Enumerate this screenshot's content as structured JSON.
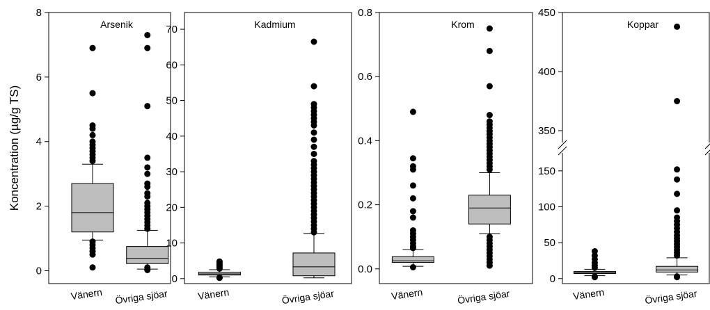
{
  "chart_data": [
    {
      "type": "box",
      "title": "Arsenik",
      "ylabel": "Koncentration (µg/g TS)",
      "categories": [
        "Vänern",
        "Övriga sjöar"
      ],
      "color": "#bebebe",
      "boxes": [
        {
          "whislo": 0.95,
          "q1": 1.2,
          "med": 1.8,
          "q3": 2.7,
          "whishi": 3.3,
          "fliers": [
            0.1,
            0.5,
            0.6,
            0.7,
            0.8,
            0.9,
            3.4,
            3.5,
            3.6,
            3.7,
            3.8,
            3.9,
            4.0,
            4.2,
            4.4,
            4.5,
            5.5,
            6.9
          ]
        },
        {
          "whislo": 0.05,
          "q1": 0.22,
          "med": 0.38,
          "q3": 0.75,
          "whishi": 1.25,
          "fliers": [
            0.02,
            0.1,
            1.3,
            1.4,
            1.5,
            1.6,
            1.7,
            1.8,
            1.9,
            2.0,
            2.1,
            2.3,
            2.4,
            2.6,
            2.7,
            3.0,
            3.2,
            3.5,
            5.1,
            6.9,
            7.3
          ]
        }
      ],
      "ylim": [
        -0.4,
        8
      ],
      "yticks": [
        0,
        2,
        4,
        6,
        8
      ]
    },
    {
      "type": "box",
      "title": "Kadmium",
      "categories": [
        "Vänern",
        "Övriga sjöar"
      ],
      "color": "#bebebe",
      "boxes": [
        {
          "whislo": 0.5,
          "q1": 1.0,
          "med": 1.3,
          "q3": 1.8,
          "whishi": 2.5,
          "fliers": [
            0.2,
            0.3,
            2.8,
            3.2,
            3.6,
            4.0,
            4.4,
            4.8
          ]
        },
        {
          "whislo": 0.2,
          "q1": 0.8,
          "med": 3.3,
          "q3": 7.2,
          "whishi": 12.7,
          "fliers": [
            13,
            14,
            15,
            16,
            17,
            18,
            19,
            20,
            21,
            22,
            23,
            24,
            25,
            26,
            27,
            28,
            29,
            30,
            31,
            32,
            33,
            35,
            37,
            39,
            41,
            43,
            44,
            45,
            46,
            47,
            48,
            49,
            54,
            66.5
          ]
        }
      ],
      "ylim": [
        -1.4,
        74.7
      ],
      "yticks": [
        0,
        10,
        20,
        30,
        40,
        50,
        60,
        70
      ]
    },
    {
      "type": "box",
      "title": "Krom",
      "categories": [
        "Vänern",
        "Övriga sjöar"
      ],
      "color": "#bebebe",
      "boxes": [
        {
          "whislo": 0.008,
          "q1": 0.02,
          "med": 0.025,
          "q3": 0.038,
          "whishi": 0.06,
          "fliers": [
            0.005,
            0.065,
            0.07,
            0.08,
            0.09,
            0.1,
            0.11,
            0.12,
            0.16,
            0.18,
            0.22,
            0.26,
            0.31,
            0.32,
            0.345,
            0.49
          ]
        },
        {
          "whislo": 0.11,
          "q1": 0.14,
          "med": 0.19,
          "q3": 0.23,
          "whishi": 0.3,
          "fliers": [
            0.01,
            0.02,
            0.03,
            0.04,
            0.05,
            0.06,
            0.07,
            0.08,
            0.09,
            0.1,
            0.31,
            0.32,
            0.33,
            0.34,
            0.35,
            0.36,
            0.37,
            0.38,
            0.39,
            0.4,
            0.41,
            0.42,
            0.43,
            0.44,
            0.45,
            0.46,
            0.48,
            0.57,
            0.68,
            0.75
          ]
        }
      ],
      "ylim": [
        -0.046,
        0.8
      ],
      "yticks": [
        {
          "value": 0,
          "label": "0.0"
        },
        0.2,
        0.4,
        0.6,
        0.8
      ]
    },
    {
      "type": "box",
      "title": "Koppar",
      "categories": [
        "Vänern",
        "Övriga sjöar"
      ],
      "color": "#bebebe",
      "boxes": [
        {
          "whislo": 4,
          "q1": 7,
          "med": 8,
          "q3": 10,
          "whishi": 13,
          "fliers": [
            2,
            3,
            15,
            18,
            22,
            27,
            32,
            38
          ]
        },
        {
          "whislo": 5,
          "q1": 9,
          "med": 12,
          "q3": 17,
          "whishi": 29,
          "fliers": [
            2,
            3,
            32,
            36,
            40,
            44,
            48,
            52,
            56,
            60,
            65,
            70,
            75,
            80,
            85,
            95,
            118,
            138,
            152,
            375,
            438
          ]
        }
      ],
      "ylim": [
        -7,
        450
      ],
      "ybreak": [
        175,
        340
      ],
      "yticks": [
        0,
        50,
        100,
        150,
        350,
        400,
        450
      ]
    }
  ]
}
